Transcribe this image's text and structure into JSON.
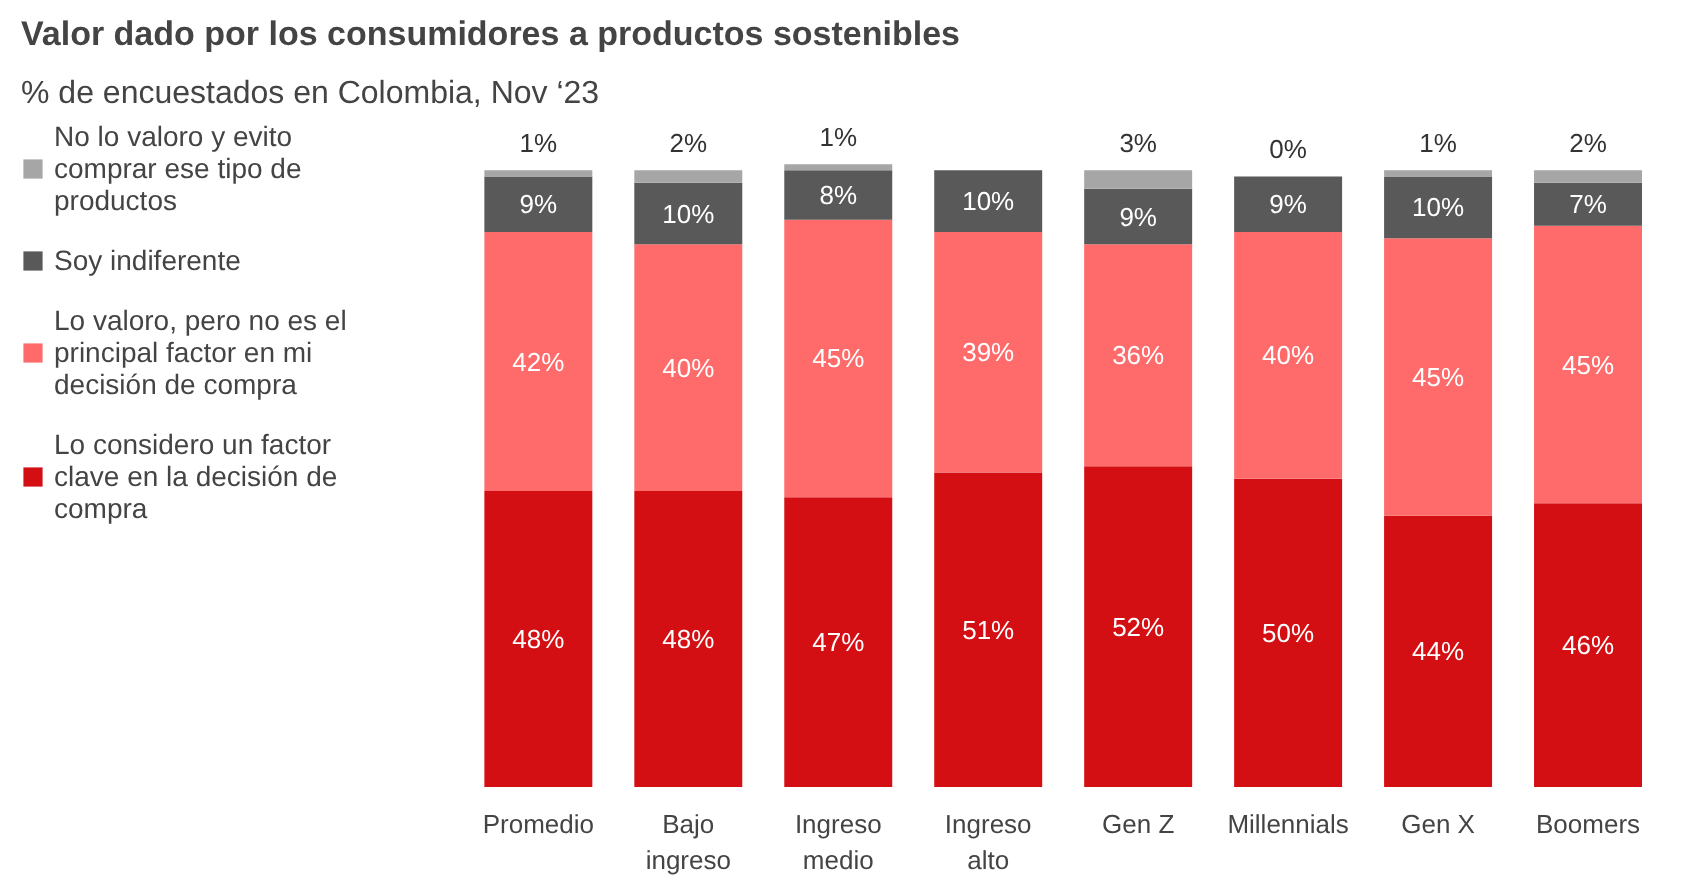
{
  "chart_data": {
    "type": "bar",
    "stacked": true,
    "title": "Valor dado por los consumidores a productos sostenibles",
    "subtitle": "% de encuestados en Colombia, Nov ‘23",
    "categories": [
      "Promedio",
      "Bajo ingreso",
      "Ingreso medio",
      "Ingreso alto",
      "Gen Z",
      "Millennials",
      "Gen X",
      "Boomers"
    ],
    "series": [
      {
        "name": "Lo considero un factor clave en la decisión de compra",
        "color": "#d40f14",
        "values": [
          48,
          48,
          47,
          51,
          52,
          50,
          44,
          46
        ],
        "value_labels": [
          "48%",
          "48%",
          "47%",
          "51%",
          "52%",
          "50%",
          "44%",
          "46%"
        ]
      },
      {
        "name": "Lo valoro, pero no es el principal factor en mi decisión de compra",
        "color": "#ff6b6b",
        "values": [
          42,
          40,
          45,
          39,
          36,
          40,
          45,
          45
        ],
        "value_labels": [
          "42%",
          "40%",
          "45%",
          "39%",
          "36%",
          "40%",
          "45%",
          "45%"
        ]
      },
      {
        "name": "Soy indiferente",
        "color": "#595959",
        "values": [
          9,
          10,
          8,
          10,
          9,
          9,
          10,
          7
        ],
        "value_labels": [
          "9%",
          "10%",
          "8%",
          "10%",
          "9%",
          "9%",
          "10%",
          "7%"
        ]
      },
      {
        "name": "No lo valoro y evito comprar ese tipo de productos",
        "color": "#a6a6a6",
        "values": [
          1,
          2,
          1,
          0,
          3,
          0,
          1,
          2
        ],
        "value_labels": [
          "1%",
          "2%",
          "1%",
          null,
          "3%",
          "0%",
          "1%",
          "2%"
        ]
      }
    ],
    "legend": "left",
    "grid": false
  }
}
